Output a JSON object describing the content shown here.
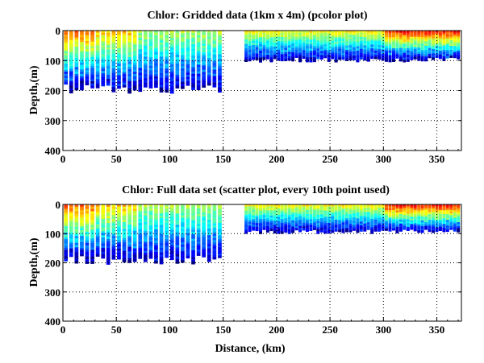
{
  "chart_data": [
    {
      "type": "heatmap",
      "title": "Chlor: Gridded data (1km x 4m) (pcolor plot)",
      "xlabel": "",
      "ylabel": "Depth,(m)",
      "xlim": [
        0,
        373
      ],
      "ylim": [
        0,
        400
      ],
      "y_reversed": true,
      "grid": true,
      "xticks": [
        "0",
        "50",
        "100",
        "150",
        "200",
        "250",
        "300",
        "350"
      ],
      "yticks": [
        "0",
        "100",
        "200",
        "300",
        "400"
      ],
      "colormap": "jet",
      "segments": [
        {
          "x_start": 1,
          "x_end": 150,
          "max_depth": 210,
          "profiles": 30
        },
        {
          "x_start": 170,
          "x_end": 372,
          "max_depth": 105,
          "profiles": 60
        }
      ]
    },
    {
      "type": "scatter",
      "title": "Chlor: Full data set (scatter plot, every 10th point used)",
      "xlabel": "Distance, (km)",
      "ylabel": "Depth,(m)",
      "xlim": [
        0,
        373
      ],
      "ylim": [
        0,
        400
      ],
      "y_reversed": true,
      "grid": true,
      "xticks": [
        "0",
        "50",
        "100",
        "150",
        "200",
        "250",
        "300",
        "350"
      ],
      "yticks": [
        "0",
        "100",
        "200",
        "300",
        "400"
      ],
      "colormap": "jet",
      "segments": [
        {
          "x_start": 1,
          "x_end": 150,
          "max_depth": 205,
          "profiles": 30
        },
        {
          "x_start": 170,
          "x_end": 372,
          "max_depth": 100,
          "profiles": 60
        }
      ]
    }
  ]
}
